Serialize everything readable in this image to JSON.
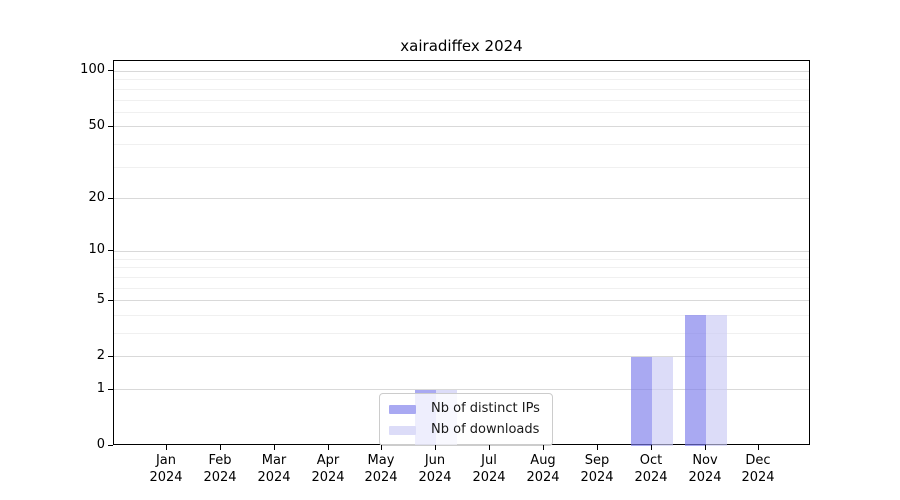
{
  "chart_data": {
    "type": "bar",
    "title": "xairadiffex 2024",
    "categories": [
      "Jan",
      "Feb",
      "Mar",
      "Apr",
      "May",
      "Jun",
      "Jul",
      "Aug",
      "Sep",
      "Oct",
      "Nov",
      "Dec"
    ],
    "category_year": "2024",
    "series": [
      {
        "name": "Nb of distinct IPs",
        "color": "#7b7beb",
        "legend_color": "#a9a9f2",
        "values": [
          0,
          0,
          0,
          0,
          0,
          1,
          0,
          0,
          0,
          2,
          4,
          0
        ]
      },
      {
        "name": "Nb of downloads",
        "color": "#c9c9f4",
        "legend_color": "#dcdcf8",
        "values": [
          0,
          0,
          0,
          0,
          0,
          1,
          0,
          0,
          0,
          2,
          4,
          0
        ]
      }
    ],
    "bar_alpha": 0.65,
    "xlabel": "",
    "ylabel": "",
    "yscale": "log1p",
    "ylim": [
      0,
      113.9
    ],
    "y_major_ticks": [
      0,
      1,
      2,
      5,
      10,
      20,
      50,
      100
    ],
    "y_minor_ticks": [
      3,
      4,
      6,
      7,
      8,
      9,
      30,
      40,
      60,
      70,
      80,
      90
    ],
    "grid": true,
    "legend_position": "lower-center-inside",
    "axis_color": "#000000",
    "grid_major_color": "#d9d9d9",
    "grid_minor_color": "#f0f0f0"
  }
}
